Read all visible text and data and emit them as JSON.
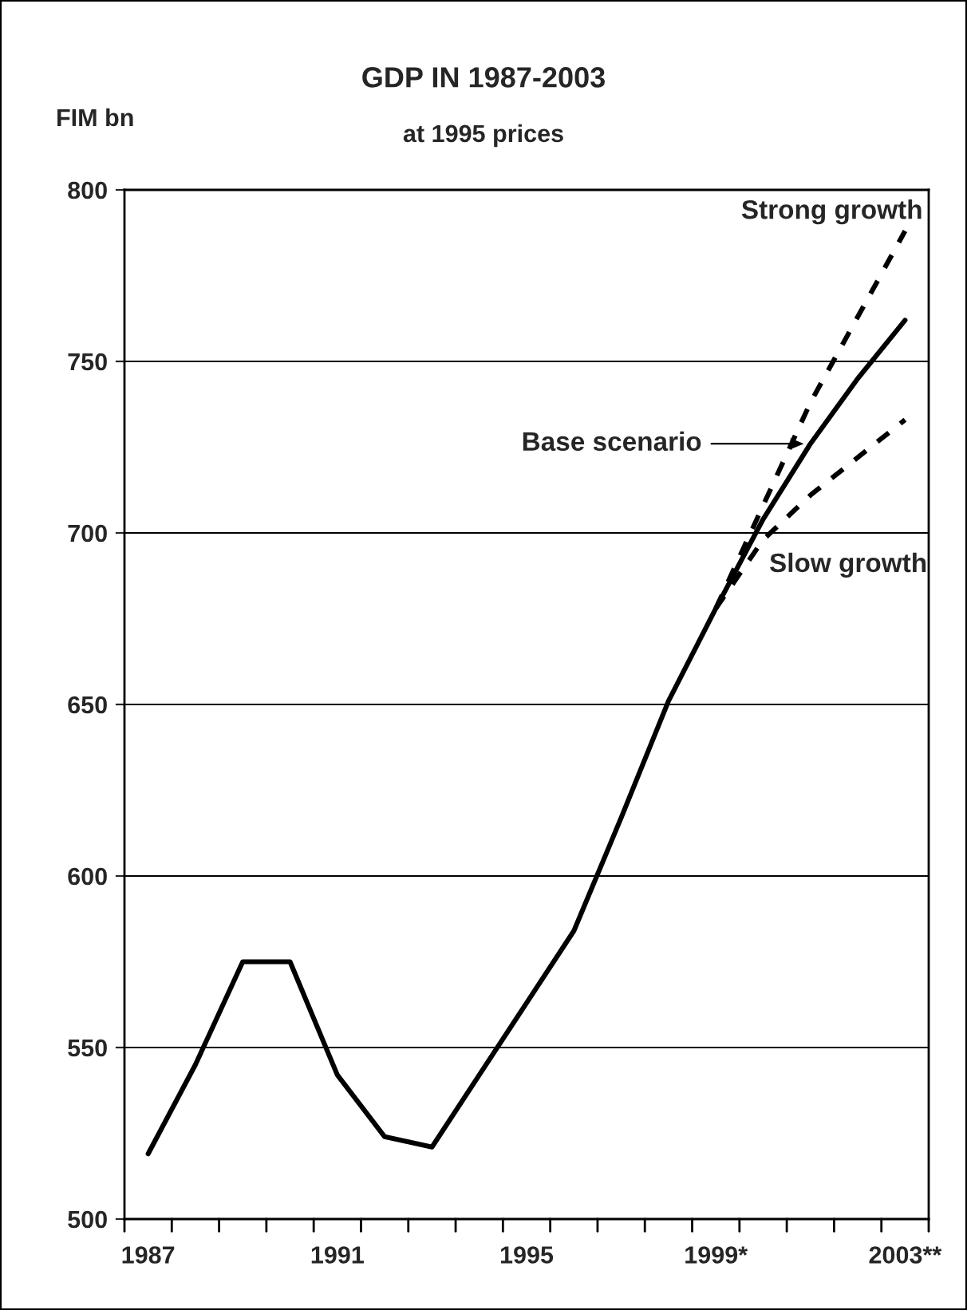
{
  "chart_data": {
    "type": "line",
    "title": "GDP IN 1987-2003",
    "subtitle": "at 1995 prices",
    "ylabel": "FIM bn",
    "categories": [
      "1987",
      null,
      null,
      null,
      "1991",
      null,
      null,
      null,
      "1995",
      null,
      null,
      null,
      "1999*",
      null,
      null,
      null,
      "2003**"
    ],
    "series": [
      {
        "color": "#000000",
        "line_style": "solid",
        "values": [
          519,
          545,
          575,
          575,
          542,
          524,
          521,
          542,
          563,
          584,
          617,
          651,
          678,
          704,
          726,
          745,
          762
        ]
      },
      {
        "name": "Strong growth",
        "color": "#000000",
        "line_style": "dashed",
        "values": [
          null,
          null,
          null,
          null,
          null,
          null,
          null,
          null,
          null,
          null,
          null,
          null,
          678,
          708,
          738,
          763,
          788
        ]
      },
      {
        "name": "Slow growth",
        "color": "#000000",
        "line_style": "dashed",
        "values": [
          null,
          null,
          null,
          null,
          null,
          null,
          null,
          null,
          null,
          null,
          null,
          null,
          678,
          698,
          711,
          722,
          733
        ]
      }
    ],
    "annotations": [
      "Base scenario"
    ],
    "ylim": [
      500,
      800
    ],
    "yticks": [
      500,
      550,
      600,
      650,
      700,
      750,
      800
    ],
    "grid": "y",
    "legend": false,
    "marker": "none"
  }
}
